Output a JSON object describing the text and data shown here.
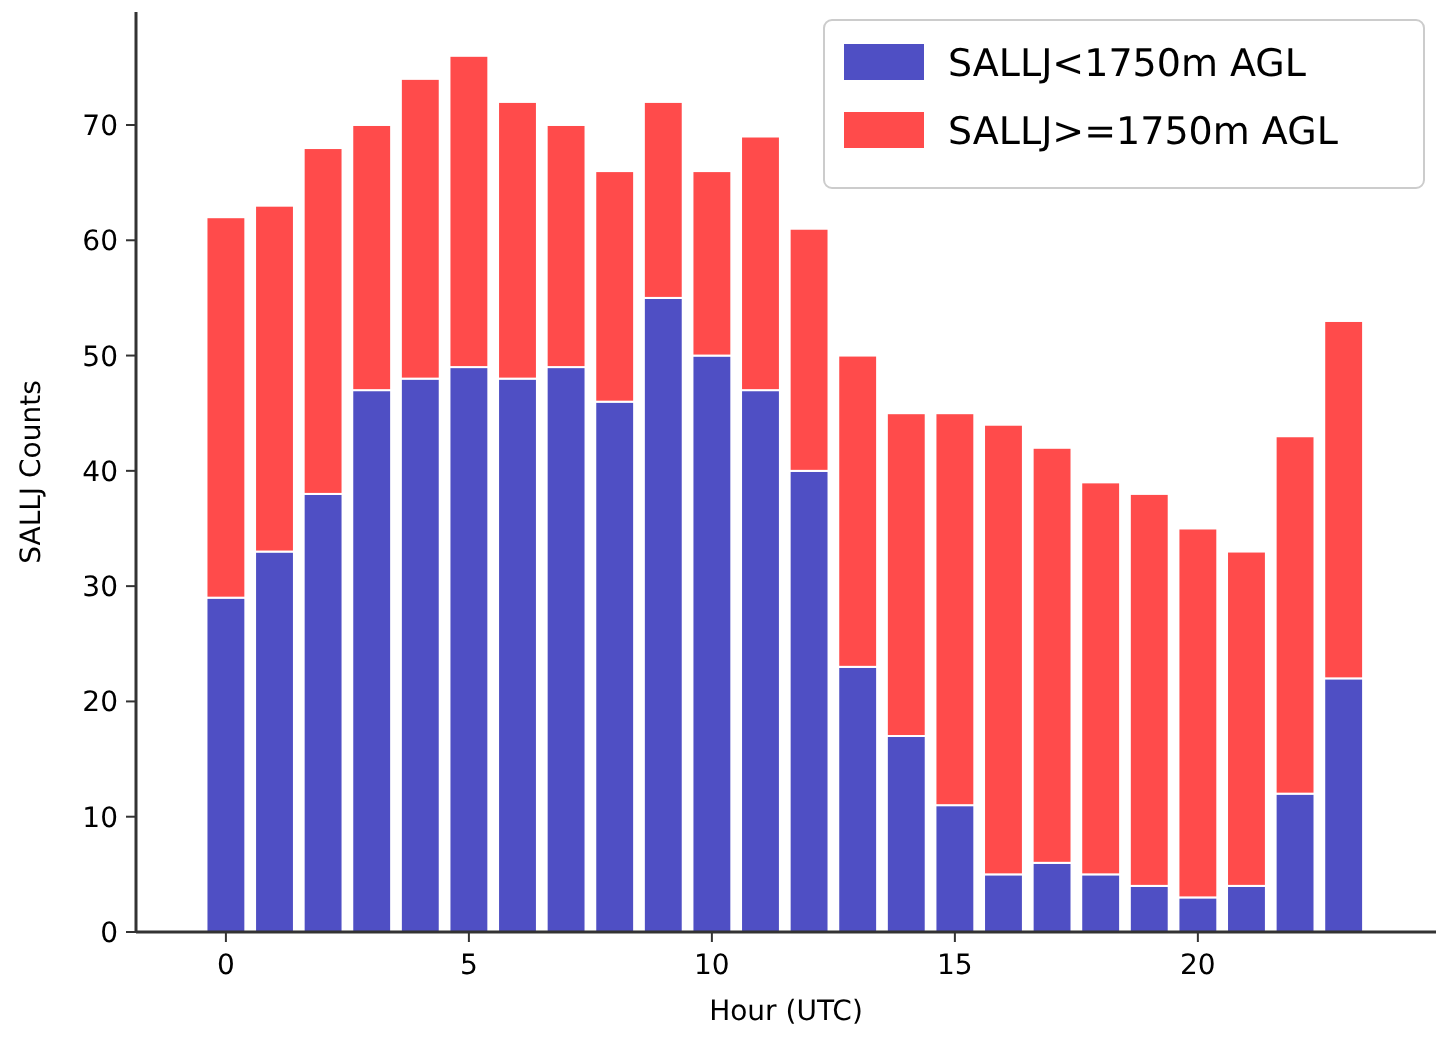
{
  "chart_data": {
    "type": "bar",
    "stacked": true,
    "xlabel": "Hour (UTC)",
    "ylabel": "SALLJ Counts",
    "x": [
      0,
      1,
      2,
      3,
      4,
      5,
      6,
      7,
      8,
      9,
      10,
      11,
      12,
      13,
      14,
      15,
      16,
      17,
      18,
      19,
      20,
      21,
      22,
      23
    ],
    "series": [
      {
        "name": "SALLJ<1750m AGL",
        "color": "#4f4fc4",
        "values": [
          29,
          33,
          38,
          47,
          48,
          49,
          48,
          49,
          46,
          55,
          50,
          47,
          40,
          23,
          17,
          11,
          5,
          6,
          5,
          4,
          3,
          4,
          12,
          22
        ]
      },
      {
        "name": "SALLJ>=1750m AGL",
        "color": "#ff4b4b",
        "values": [
          33,
          30,
          30,
          23,
          26,
          27,
          24,
          21,
          20,
          17,
          16,
          22,
          21,
          27,
          28,
          34,
          39,
          36,
          34,
          34,
          32,
          29,
          31,
          31
        ]
      }
    ],
    "xlim": [
      -1.85,
      24.9
    ],
    "xticks": [
      0,
      5,
      10,
      15,
      20
    ],
    "ylim": [
      0,
      79.8
    ],
    "yticks": [
      0,
      10,
      20,
      30,
      40,
      50,
      60,
      70
    ],
    "legend": "top right",
    "grid": false
  }
}
